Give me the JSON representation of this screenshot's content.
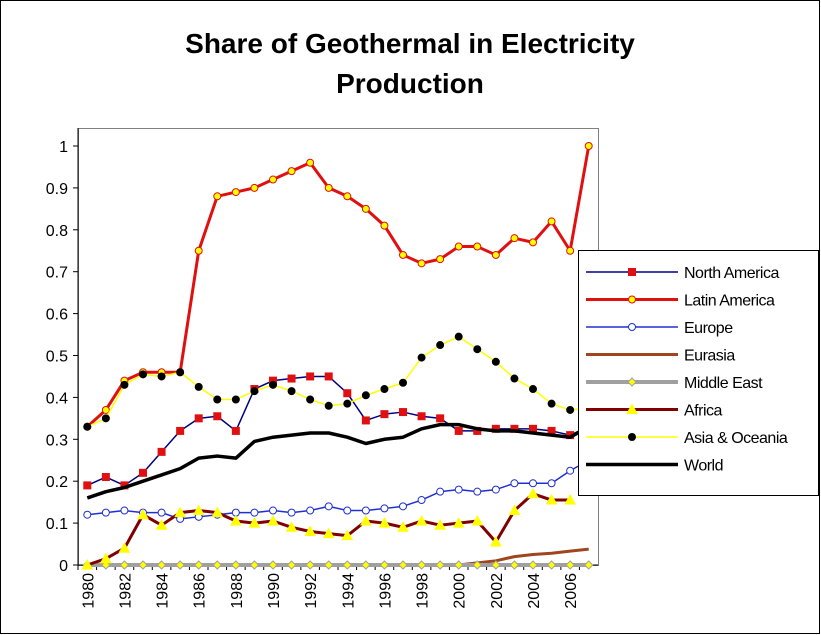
{
  "chart_data": {
    "type": "line",
    "title": "Share of Geothermal in Electricity Production",
    "categories": [
      "1980",
      null,
      "1982",
      null,
      "1984",
      null,
      "1986",
      null,
      "1988",
      null,
      "1990",
      null,
      "1992",
      null,
      "1994",
      null,
      "1996",
      null,
      "1998",
      null,
      "2000",
      null,
      "2002",
      null,
      "2004",
      null,
      "2006",
      null
    ],
    "ylim": [
      0,
      1
    ],
    "yticks": [
      0,
      0.1,
      0.2,
      0.3,
      0.4,
      0.5,
      0.6,
      0.7,
      0.8,
      0.9,
      1
    ],
    "grid": false,
    "legend": "right",
    "series": [
      {
        "name": "North America",
        "color": "#000080",
        "marker": "square",
        "marker_fill": "#e01010",
        "marker_edge": "#e01010",
        "width": 1.5,
        "values": [
          0.19,
          0.21,
          0.19,
          0.22,
          0.27,
          0.32,
          0.35,
          0.355,
          0.32,
          0.42,
          0.44,
          0.445,
          0.45,
          0.45,
          0.41,
          0.345,
          0.36,
          0.365,
          0.355,
          0.35,
          0.32,
          0.32,
          0.325,
          0.325,
          0.325,
          0.32,
          0.31,
          0.33
        ]
      },
      {
        "name": "Latin America",
        "color": "#e01010",
        "marker": "circle",
        "marker_fill": "#ffff00",
        "marker_edge": "#e01010",
        "width": 3,
        "values": [
          0.33,
          0.37,
          0.44,
          0.46,
          0.46,
          0.46,
          0.75,
          0.88,
          0.89,
          0.9,
          0.92,
          0.94,
          0.96,
          0.9,
          0.88,
          0.85,
          0.81,
          0.74,
          0.72,
          0.73,
          0.76,
          0.76,
          0.74,
          0.78,
          0.77,
          0.82,
          0.75,
          1.0
        ]
      },
      {
        "name": "Europe",
        "color": "#2030d0",
        "marker": "circle",
        "marker_fill": "#ffffff",
        "marker_edge": "#2030d0",
        "width": 1.5,
        "values": [
          0.12,
          0.125,
          0.13,
          0.125,
          0.125,
          0.11,
          0.115,
          0.12,
          0.125,
          0.125,
          0.13,
          0.125,
          0.13,
          0.14,
          0.13,
          0.13,
          0.135,
          0.14,
          0.155,
          0.175,
          0.18,
          0.175,
          0.18,
          0.195,
          0.195,
          0.195,
          0.225,
          0.25
        ]
      },
      {
        "name": "Eurasia",
        "color": "#a0461e",
        "marker": "none",
        "width": 3,
        "values": [
          0,
          0,
          0,
          0,
          0,
          0,
          0,
          0,
          0,
          0,
          0,
          0,
          0,
          0,
          0,
          0,
          0,
          0,
          0,
          0,
          0,
          0.005,
          0.01,
          0.02,
          0.025,
          0.028,
          0.033,
          0.038
        ]
      },
      {
        "name": "Middle East",
        "color": "#a0a0a0",
        "marker": "diamond",
        "marker_fill": "#ffff00",
        "marker_edge": "#a0a0a0",
        "width": 4,
        "values": [
          0,
          0,
          0,
          0,
          0,
          0,
          0,
          0,
          0,
          0,
          0,
          0,
          0,
          0,
          0,
          0,
          0,
          0,
          0,
          0,
          0,
          0,
          0,
          0,
          0,
          0,
          0,
          0
        ]
      },
      {
        "name": "Africa",
        "color": "#800000",
        "marker": "triangle",
        "marker_fill": "#ffff00",
        "marker_edge": "#ffff00",
        "width": 3,
        "values": [
          0,
          0.015,
          0.04,
          0.12,
          0.095,
          0.125,
          0.13,
          0.125,
          0.105,
          0.1,
          0.105,
          0.09,
          0.08,
          0.075,
          0.07,
          0.105,
          0.1,
          0.09,
          0.105,
          0.095,
          0.1,
          0.105,
          0.055,
          0.13,
          0.17,
          0.155,
          0.155,
          null
        ]
      },
      {
        "name": "Asia & Oceania",
        "color": "#ffff00",
        "marker": "circle",
        "marker_fill": "#000000",
        "marker_edge": "#000000",
        "width": 1.5,
        "values": [
          0.33,
          0.35,
          0.43,
          0.455,
          0.45,
          0.46,
          0.425,
          0.395,
          0.395,
          0.415,
          0.43,
          0.415,
          0.395,
          0.38,
          0.385,
          0.405,
          0.42,
          0.435,
          0.495,
          0.525,
          0.545,
          0.515,
          0.485,
          0.445,
          0.42,
          0.385,
          0.37,
          0.375
        ]
      },
      {
        "name": "World",
        "color": "#000000",
        "marker": "none",
        "width": 3.5,
        "values": [
          0.16,
          0.175,
          0.185,
          0.2,
          0.215,
          0.23,
          0.255,
          0.26,
          0.255,
          0.295,
          0.305,
          0.31,
          0.315,
          0.315,
          0.305,
          0.29,
          0.3,
          0.305,
          0.325,
          0.335,
          0.335,
          0.325,
          0.32,
          0.32,
          0.315,
          0.31,
          0.305,
          0.33
        ]
      }
    ]
  }
}
